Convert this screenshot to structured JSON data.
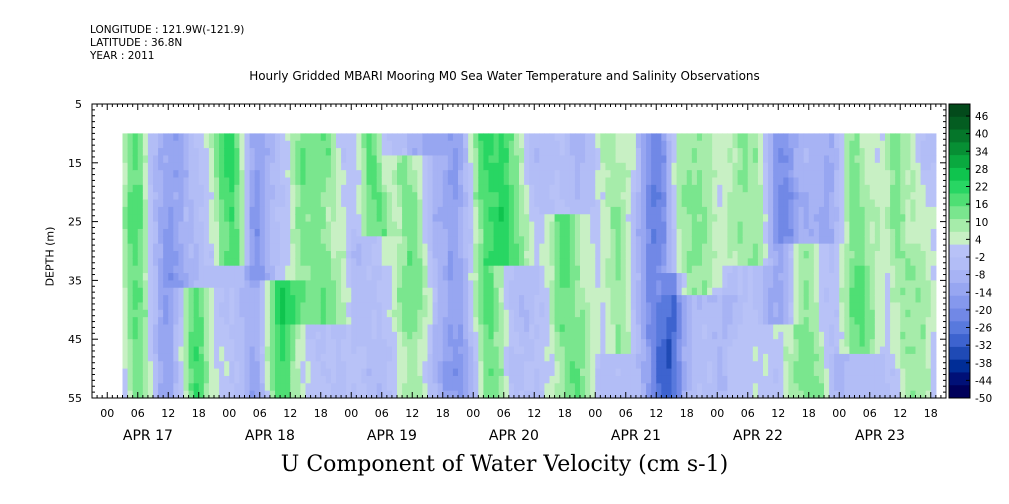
{
  "header": {
    "longitude": "LONGITUDE : 121.9W(-121.9)",
    "latitude": "LATITUDE : 36.8N",
    "year": "YEAR : 2011"
  },
  "title": "Hourly Gridded MBARI Mooring M0 Sea Water Temperature and Salinity Observations",
  "bottom_title": "U Component of Water Velocity (cm s-1)",
  "chart_data": {
    "type": "heatmap",
    "title": "Hourly Gridded MBARI Mooring M0 Sea Water Temperature and Salinity Observations",
    "variable": "U Component of Water Velocity (cm s-1)",
    "ylabel": "DEPTH (m)",
    "ylim": [
      55,
      5
    ],
    "y_ticks": [
      5,
      15,
      25,
      35,
      45,
      55
    ],
    "y_data_range": [
      10,
      55
    ],
    "x_days": [
      "APR 17",
      "APR 18",
      "APR 19",
      "APR 20",
      "APR 21",
      "APR 22",
      "APR 23"
    ],
    "x_hour_ticks": [
      "00",
      "06",
      "12",
      "18"
    ],
    "x_start_hour": 3,
    "x_end_hour": 163,
    "colorbar": {
      "min": -50,
      "max": 50,
      "labels": [
        46,
        40,
        34,
        28,
        22,
        16,
        10,
        4,
        -2,
        -8,
        -14,
        -20,
        -26,
        -32,
        -38,
        -44,
        -50
      ],
      "colors": [
        "#00005a",
        "#001077",
        "#002d97",
        "#1f4ab5",
        "#3d63cf",
        "#5879dd",
        "#7188e6",
        "#8598ed",
        "#97a6f1",
        "#a7b3f4",
        "#b2bdf6",
        "#b8c2f7",
        "#c8f0c4",
        "#a6ecaa",
        "#7ae68e",
        "#4fdf74",
        "#28d663",
        "#0fc44e",
        "#0aa93f",
        "#078f34",
        "#05762a",
        "#045d21",
        "#034a1b"
      ]
    },
    "pattern": {
      "green_columns": [
        {
          "hour": 5,
          "width_h": 3,
          "depths": [
            10,
            55
          ],
          "strength": 0.9
        },
        {
          "hour": 16,
          "width_h": 4,
          "depths": [
            38,
            55
          ],
          "strength": 1.0
        },
        {
          "hour": 24,
          "width_h": 3,
          "depths": [
            10,
            30
          ],
          "strength": 1.0
        },
        {
          "hour": 33,
          "width_h": 4,
          "depths": [
            36,
            55
          ],
          "strength": 1.0
        },
        {
          "hour": 41,
          "width_h": 5,
          "depths": [
            10,
            40
          ],
          "strength": 0.9
        },
        {
          "hour": 52,
          "width_h": 3,
          "depths": [
            10,
            25
          ],
          "strength": 0.8
        },
        {
          "hour": 60,
          "width_h": 4,
          "depths": [
            15,
            55
          ],
          "strength": 0.8
        },
        {
          "hour": 74,
          "width_h": 3,
          "depths": [
            10,
            55
          ],
          "strength": 0.9
        },
        {
          "hour": 79,
          "width_h": 4,
          "depths": [
            10,
            30
          ],
          "strength": 1.0
        },
        {
          "hour": 90,
          "width_h": 4,
          "depths": [
            25,
            55
          ],
          "strength": 0.8
        },
        {
          "hour": 100,
          "width_h": 3,
          "depths": [
            10,
            45
          ],
          "strength": 0.7
        },
        {
          "hour": 115,
          "width_h": 5,
          "depths": [
            10,
            35
          ],
          "strength": 0.8
        },
        {
          "hour": 126,
          "width_h": 4,
          "depths": [
            10,
            30
          ],
          "strength": 0.7
        },
        {
          "hour": 137,
          "width_h": 5,
          "depths": [
            30,
            55
          ],
          "strength": 0.9
        },
        {
          "hour": 147,
          "width_h": 4,
          "depths": [
            10,
            45
          ],
          "strength": 0.9
        },
        {
          "hour": 157,
          "width_h": 4,
          "depths": [
            10,
            55
          ],
          "strength": 0.7
        }
      ],
      "blue_columns": [
        {
          "hour": 12,
          "width_h": 4,
          "depths": [
            10,
            55
          ],
          "strength": 0.6
        },
        {
          "hour": 29,
          "width_h": 3,
          "depths": [
            10,
            55
          ],
          "strength": 0.6
        },
        {
          "hour": 66,
          "width_h": 5,
          "depths": [
            10,
            55
          ],
          "strength": 0.6
        },
        {
          "hour": 108,
          "width_h": 3,
          "depths": [
            10,
            55
          ],
          "strength": 1.0
        },
        {
          "hour": 111,
          "width_h": 2,
          "depths": [
            35,
            55
          ],
          "strength": 0.9
        },
        {
          "hour": 132,
          "width_h": 3,
          "depths": [
            10,
            40
          ],
          "strength": 0.9
        },
        {
          "hour": 142,
          "width_h": 3,
          "depths": [
            10,
            55
          ],
          "strength": 0.6
        }
      ]
    }
  }
}
